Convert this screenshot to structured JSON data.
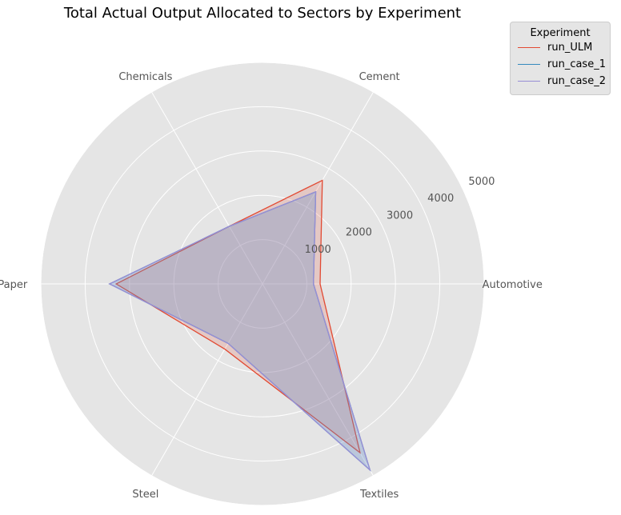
{
  "chart_data": {
    "type": "radar",
    "title": "Total Actual Output Allocated to Sectors by Experiment",
    "categories": [
      "Automotive",
      "Cement",
      "Chemicals",
      "Paper",
      "Steel",
      "Textiles"
    ],
    "r_ticks": [
      1000,
      2000,
      3000,
      4000,
      5000
    ],
    "r_tick_labels": [
      "1000",
      "2000",
      "3000",
      "4000",
      "5000"
    ],
    "rlim": [
      0,
      5000
    ],
    "grid": true,
    "legend": {
      "title": "Experiment",
      "placement": "outside-top-right"
    },
    "series": [
      {
        "name": "run_ULM",
        "color": "#e24a33",
        "values": [
          1300,
          2700,
          1500,
          3300,
          1700,
          4400
        ]
      },
      {
        "name": "run_case_1",
        "color": "#348abd",
        "values": [
          1150,
          2400,
          1500,
          3450,
          1550,
          4850
        ]
      },
      {
        "name": "run_case_2",
        "color": "#988ed5",
        "values": [
          1150,
          2400,
          1500,
          3450,
          1550,
          4850
        ]
      }
    ]
  }
}
